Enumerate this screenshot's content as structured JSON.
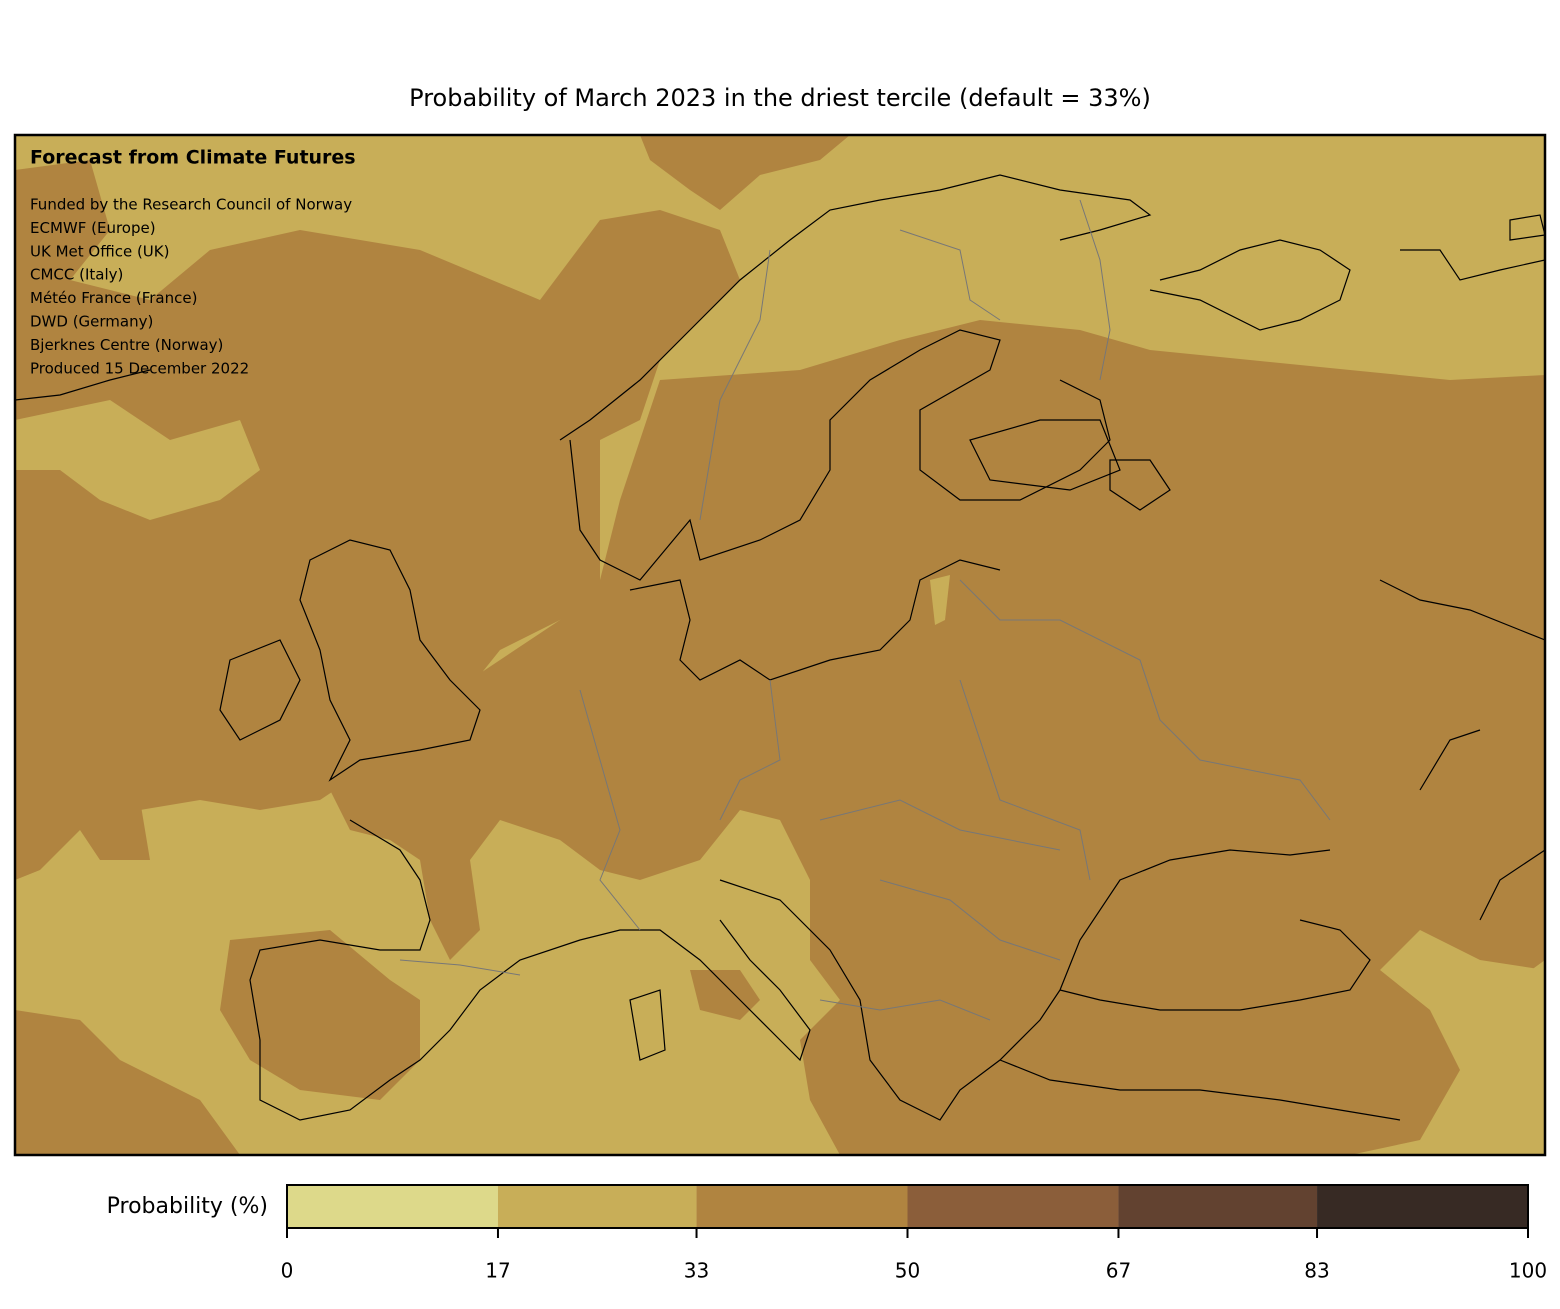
{
  "title": "Probability of March 2023 in the driest tercile (default = 33%)",
  "map": {
    "heading": "Forecast from Climate Futures",
    "credits": [
      "Funded by the Research Council of Norway",
      "ECMWF (Europe)",
      "UK Met Office (UK)",
      "CMCC (Italy)",
      "Météo France (France)",
      "DWD (Germany)",
      "Bjerknes Centre (Norway)",
      "Produced 15 December 2022"
    ]
  },
  "colorbar": {
    "label": "Probability (%)",
    "lim": [
      0,
      100
    ],
    "ticks": [
      0,
      17,
      33,
      50,
      67,
      83,
      100
    ],
    "colors": [
      "#ddd98a",
      "#c8ae58",
      "#b08440",
      "#8b5e3a",
      "#624230",
      "#372a24"
    ]
  }
}
